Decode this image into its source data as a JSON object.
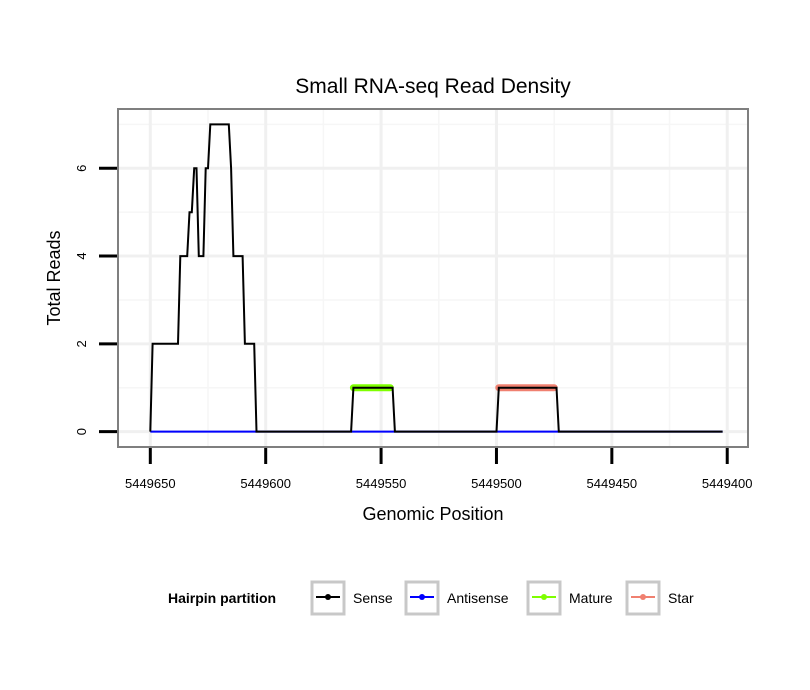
{
  "chart_data": {
    "type": "line",
    "title": "Small RNA-seq Read Density",
    "xlabel": "Genomic Position",
    "ylabel": "Total Reads",
    "x_reversed": true,
    "xlim": [
      5449664,
      5449391
    ],
    "ylim": [
      -0.35,
      7.35
    ],
    "x_ticks": [
      5449650,
      5449600,
      5449550,
      5449500,
      5449450,
      5449400
    ],
    "x_tick_labels": [
      "5449650",
      "5449600",
      "5449550",
      "5449500",
      "5449450",
      "5449400"
    ],
    "y_ticks": [
      0,
      2,
      4,
      6
    ],
    "y_tick_labels": [
      "0",
      "2",
      "4",
      "6"
    ],
    "grid": true,
    "legend": {
      "title": "Hairpin partition",
      "position": "bottom",
      "entries": [
        "Sense",
        "Antisense",
        "Mature",
        "Star"
      ]
    },
    "series": [
      {
        "name": "Sense",
        "color": "#000000",
        "x": [
          5449650,
          5449649,
          5449638,
          5449637,
          5449634,
          5449633,
          5449632,
          5449631,
          5449630,
          5449629,
          5449627,
          5449626,
          5449625,
          5449624,
          5449623,
          5449622,
          5449616,
          5449615,
          5449614,
          5449610,
          5449609,
          5449605,
          5449604,
          5449603,
          5449563,
          5449562,
          5449545,
          5449544,
          5449500,
          5449499,
          5449474,
          5449473,
          5449402
        ],
        "y": [
          0,
          2,
          2,
          4,
          4,
          5,
          5,
          6,
          6,
          4,
          4,
          6,
          6,
          7,
          7,
          7,
          7,
          6,
          4,
          4,
          2,
          2,
          0,
          0,
          0,
          1,
          1,
          0,
          0,
          1,
          1,
          0,
          0
        ]
      },
      {
        "name": "Antisense",
        "color": "#0000FF",
        "x": [
          5449650,
          5449402
        ],
        "y": [
          0,
          0
        ]
      },
      {
        "name": "Mature",
        "color": "#7FFF00",
        "x": [
          5449562,
          5449546
        ],
        "y": [
          1,
          1
        ]
      },
      {
        "name": "Star",
        "color": "#F08070",
        "x": [
          5449499,
          5449475
        ],
        "y": [
          1,
          1
        ]
      }
    ]
  }
}
